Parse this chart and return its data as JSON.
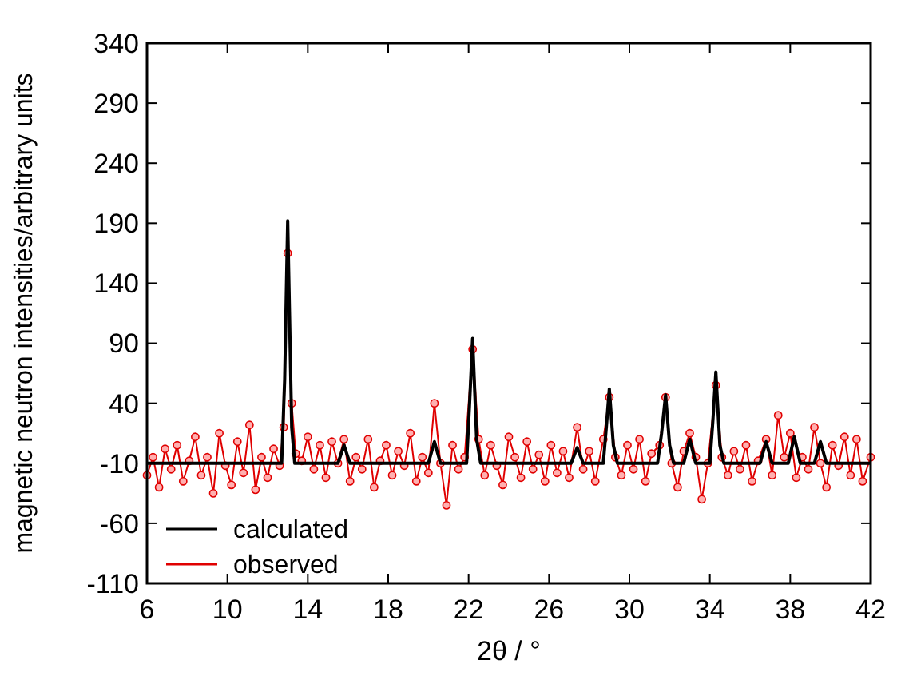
{
  "chart_data": {
    "type": "line",
    "xlabel": "2θ / °",
    "ylabel": "magnetic neutron intensities/arbitrary units",
    "xlim": [
      6,
      42
    ],
    "xticks": [
      6,
      10,
      14,
      18,
      22,
      26,
      30,
      34,
      38,
      42
    ],
    "ylim": [
      -110,
      340
    ],
    "yticks": [
      -110,
      -60,
      -10,
      40,
      90,
      140,
      190,
      240,
      290,
      340
    ],
    "grid": false,
    "legend": "bottom left",
    "series": [
      {
        "name": "calculated",
        "color": "#000000",
        "marker": "none",
        "x": [
          6,
          12.7,
          12.85,
          13.0,
          13.2,
          13.35,
          15.5,
          15.8,
          16.1,
          20.0,
          20.3,
          20.6,
          21.9,
          22.05,
          22.2,
          22.4,
          22.6,
          27.1,
          27.4,
          27.7,
          28.7,
          28.85,
          29.0,
          29.2,
          29.4,
          31.4,
          31.6,
          31.8,
          32.0,
          32.2,
          32.7,
          33.0,
          33.3,
          34.0,
          34.15,
          34.3,
          34.5,
          34.7,
          36.5,
          36.8,
          37.1,
          37.9,
          38.2,
          38.5,
          39.2,
          39.5,
          39.8,
          42
        ],
        "values": [
          -10,
          -10,
          60,
          192,
          20,
          -10,
          -10,
          5,
          -10,
          -10,
          8,
          -10,
          -10,
          40,
          94,
          10,
          -10,
          -10,
          3,
          -10,
          -10,
          20,
          52,
          5,
          -10,
          -10,
          15,
          47,
          5,
          -10,
          -10,
          10,
          -10,
          -10,
          25,
          66,
          5,
          -10,
          -10,
          8,
          -10,
          -10,
          12,
          -10,
          -10,
          8,
          -10,
          -10
        ]
      },
      {
        "name": "observed",
        "color": "#e00000",
        "marker": "circle",
        "x": [
          6.0,
          6.3,
          6.6,
          6.9,
          7.2,
          7.5,
          7.8,
          8.1,
          8.4,
          8.7,
          9.0,
          9.3,
          9.6,
          9.9,
          10.2,
          10.5,
          10.8,
          11.1,
          11.4,
          11.7,
          12.0,
          12.3,
          12.6,
          12.8,
          13.0,
          13.2,
          13.4,
          13.7,
          14.0,
          14.3,
          14.6,
          14.9,
          15.2,
          15.5,
          15.8,
          16.1,
          16.4,
          16.7,
          17.0,
          17.3,
          17.6,
          17.9,
          18.2,
          18.5,
          18.8,
          19.1,
          19.4,
          19.7,
          20.0,
          20.3,
          20.6,
          20.9,
          21.2,
          21.5,
          21.8,
          22.2,
          22.5,
          22.8,
          23.1,
          23.4,
          23.7,
          24.0,
          24.3,
          24.6,
          24.9,
          25.2,
          25.5,
          25.8,
          26.1,
          26.4,
          26.7,
          27.0,
          27.4,
          27.7,
          28.0,
          28.3,
          28.7,
          29.0,
          29.3,
          29.6,
          29.9,
          30.2,
          30.5,
          30.8,
          31.1,
          31.5,
          31.8,
          32.1,
          32.4,
          32.7,
          33.0,
          33.3,
          33.6,
          33.9,
          34.3,
          34.6,
          34.9,
          35.2,
          35.5,
          35.8,
          36.1,
          36.4,
          36.8,
          37.1,
          37.4,
          37.7,
          38.0,
          38.3,
          38.6,
          38.9,
          39.2,
          39.5,
          39.8,
          40.1,
          40.4,
          40.7,
          41.0,
          41.3,
          41.6,
          42.0
        ],
        "values": [
          -20,
          -5,
          -30,
          2,
          -15,
          5,
          -25,
          -8,
          12,
          -20,
          -5,
          -35,
          15,
          -12,
          -28,
          8,
          -18,
          22,
          -32,
          -5,
          -22,
          2,
          -12,
          20,
          165,
          40,
          -2,
          -8,
          12,
          -15,
          5,
          -22,
          8,
          -10,
          10,
          -25,
          -5,
          -15,
          10,
          -30,
          -8,
          5,
          -20,
          0,
          -12,
          15,
          -25,
          -5,
          -18,
          40,
          -10,
          -45,
          5,
          -15,
          -5,
          85,
          10,
          -20,
          5,
          -12,
          -28,
          12,
          -5,
          -22,
          8,
          -15,
          -3,
          -25,
          5,
          -18,
          0,
          -22,
          20,
          -15,
          0,
          -25,
          10,
          45,
          -5,
          -20,
          5,
          -15,
          10,
          -25,
          -2,
          5,
          45,
          -10,
          -30,
          0,
          15,
          -5,
          -40,
          -10,
          55,
          -5,
          -20,
          0,
          -15,
          5,
          -25,
          -8,
          10,
          -20,
          30,
          -5,
          15,
          -22,
          -5,
          -15,
          20,
          -10,
          -30,
          5,
          -12,
          12,
          -20,
          10,
          -25,
          -5
        ]
      }
    ]
  }
}
